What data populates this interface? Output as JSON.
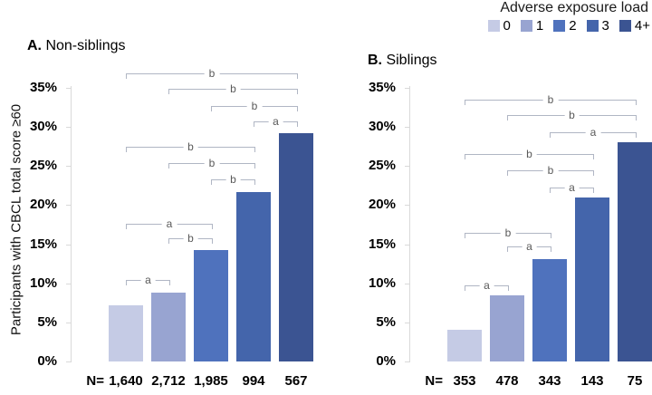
{
  "legend": {
    "title": "Adverse exposure load",
    "items": [
      {
        "label": "0",
        "color": "#c5cbe5"
      },
      {
        "label": "1",
        "color": "#98a4d1"
      },
      {
        "label": "2",
        "color": "#4f72bd"
      },
      {
        "label": "3",
        "color": "#4465ab"
      },
      {
        "label": "4+",
        "color": "#3b5492"
      }
    ]
  },
  "chart_data": [
    {
      "type": "bar",
      "title_prefix": "A.",
      "title_text": "Non-siblings",
      "categories": [
        "0",
        "1",
        "2",
        "3",
        "4+"
      ],
      "values": [
        7.2,
        8.8,
        14.2,
        21.7,
        29.2
      ],
      "n_prefix": "N=",
      "n_labels": [
        "1,640",
        "2,712",
        "1,985",
        "994",
        "567"
      ],
      "ylabel": "Participants with CBCL total score ≥60",
      "ylim": [
        0,
        35
      ],
      "yticks": [
        "0%",
        "5%",
        "10%",
        "15%",
        "20%",
        "25%",
        "30%",
        "35%"
      ],
      "grid": false,
      "legend_position": "top-right",
      "annotations": [
        {
          "from": 0,
          "to": 4,
          "label": "b",
          "y": 36.8
        },
        {
          "from": 1,
          "to": 4,
          "label": "b",
          "y": 34.9
        },
        {
          "from": 2,
          "to": 4,
          "label": "b",
          "y": 32.7
        },
        {
          "from": 3,
          "to": 4,
          "label": "a",
          "y": 30.7
        },
        {
          "from": 0,
          "to": 3,
          "label": "b",
          "y": 27.5
        },
        {
          "from": 1,
          "to": 3,
          "label": "b",
          "y": 25.4
        },
        {
          "from": 2,
          "to": 3,
          "label": "b",
          "y": 23.3
        },
        {
          "from": 0,
          "to": 2,
          "label": "a",
          "y": 17.6
        },
        {
          "from": 1,
          "to": 2,
          "label": "b",
          "y": 15.8
        },
        {
          "from": 0,
          "to": 1,
          "label": "a",
          "y": 10.4
        }
      ]
    },
    {
      "type": "bar",
      "title_prefix": "B.",
      "title_text": "Siblings",
      "categories": [
        "0",
        "1",
        "2",
        "3",
        "4+"
      ],
      "values": [
        4.0,
        8.5,
        13.1,
        21.0,
        28.0
      ],
      "n_prefix": "N=",
      "n_labels": [
        "353",
        "478",
        "343",
        "143",
        "75"
      ],
      "ylabel": "Participants with CBCL total score ≥60",
      "ylim": [
        0,
        35
      ],
      "yticks": [
        "0%",
        "5%",
        "10%",
        "15%",
        "20%",
        "25%",
        "30%",
        "35%"
      ],
      "grid": false,
      "legend_position": "top-right",
      "annotations": [
        {
          "from": 0,
          "to": 4,
          "label": "b",
          "y": 33.5
        },
        {
          "from": 1,
          "to": 4,
          "label": "b",
          "y": 31.5
        },
        {
          "from": 2,
          "to": 4,
          "label": "a",
          "y": 29.3
        },
        {
          "from": 0,
          "to": 3,
          "label": "b",
          "y": 26.5
        },
        {
          "from": 1,
          "to": 3,
          "label": "b",
          "y": 24.4
        },
        {
          "from": 2,
          "to": 3,
          "label": "a",
          "y": 22.2
        },
        {
          "from": 0,
          "to": 2,
          "label": "b",
          "y": 16.4
        },
        {
          "from": 1,
          "to": 2,
          "label": "a",
          "y": 14.7
        },
        {
          "from": 0,
          "to": 1,
          "label": "a",
          "y": 9.7
        }
      ]
    }
  ]
}
